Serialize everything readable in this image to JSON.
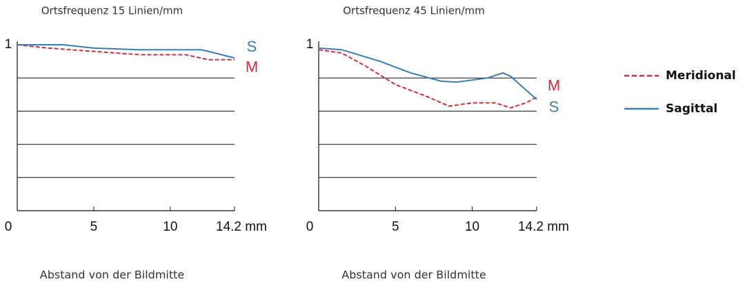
{
  "chart_data": [
    {
      "type": "line",
      "title": "Ortsfrequenz 15 Linien/mm",
      "x_label": "Abstand von der Bildmitte",
      "xlim": [
        0,
        14.2
      ],
      "ylim": [
        0,
        1
      ],
      "xticks": [
        0,
        5,
        10,
        {
          "value": 14.2,
          "label": "14.2 mm"
        }
      ],
      "yticks": [
        1
      ],
      "ygrid": [
        0.2,
        0.4,
        0.6,
        0.8
      ],
      "series": [
        {
          "name": "Meridional",
          "label": "M",
          "color": "#c9303c",
          "style": "dashed",
          "x": [
            0,
            2,
            5,
            8,
            11,
            12.5,
            14.2
          ],
          "values": [
            1,
            0.98,
            0.96,
            0.94,
            0.94,
            0.91,
            0.91
          ]
        },
        {
          "name": "Sagittal",
          "label": "S",
          "color": "#3a7db3",
          "style": "solid",
          "x": [
            0,
            3,
            5,
            8,
            12,
            12.5,
            14.2
          ],
          "values": [
            1,
            1,
            0.98,
            0.97,
            0.97,
            0.96,
            0.92
          ]
        }
      ]
    },
    {
      "type": "line",
      "title": "Ortsfrequenz 45 Linien/mm",
      "x_label": "Abstand von der Bildmitte",
      "xlim": [
        0,
        14.2
      ],
      "ylim": [
        0,
        1
      ],
      "xticks": [
        0,
        5,
        10,
        {
          "value": 14.2,
          "label": "14.2 mm"
        }
      ],
      "yticks": [
        1
      ],
      "ygrid": [
        0.2,
        0.4,
        0.6,
        0.8
      ],
      "series": [
        {
          "name": "Meridional",
          "label": "M",
          "color": "#c9303c",
          "style": "dashed",
          "x": [
            0,
            1.5,
            3,
            5,
            7,
            8.5,
            10,
            11.5,
            12.5,
            13.5,
            14.2
          ],
          "values": [
            0.97,
            0.95,
            0.875,
            0.76,
            0.69,
            0.63,
            0.65,
            0.65,
            0.62,
            0.65,
            0.685
          ]
        },
        {
          "name": "Sagittal",
          "label": "S",
          "color": "#3a7db3",
          "style": "solid",
          "x": [
            0,
            1.5,
            4,
            6,
            8,
            9,
            11,
            12,
            12.5,
            14.2
          ],
          "values": [
            0.98,
            0.97,
            0.9,
            0.83,
            0.78,
            0.775,
            0.8,
            0.83,
            0.81,
            0.67
          ]
        }
      ]
    }
  ]
}
